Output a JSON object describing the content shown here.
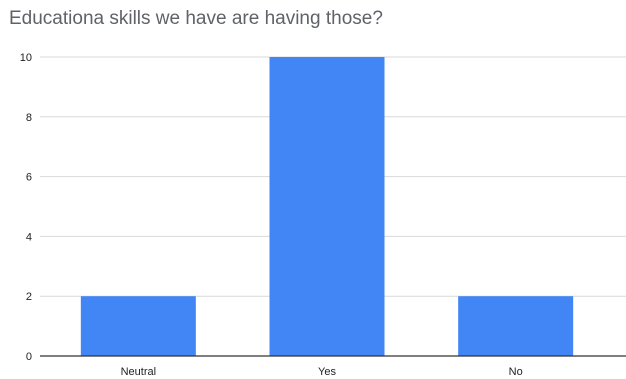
{
  "chart_data": {
    "type": "bar",
    "title": "Educationa skills we have are having those?",
    "categories": [
      "Neutral",
      "Yes",
      "No"
    ],
    "values": [
      2,
      10,
      2
    ],
    "ylim": [
      0,
      10
    ],
    "yticks": [
      0,
      2,
      4,
      6,
      8,
      10
    ],
    "grid": true,
    "legend": "none",
    "bar_color": "#4285f4",
    "grid_color": "#d9d9d9",
    "axis_color": "#333333"
  }
}
